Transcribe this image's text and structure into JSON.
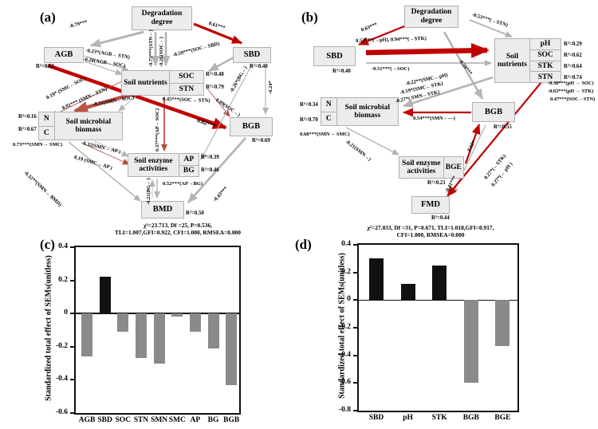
{
  "colors": {
    "arrow_gray": "#b4b4b4",
    "arrow_red": "#c00000",
    "arrow_brick": "#bd5146",
    "box_fill": "#ececec",
    "bar_gray": "#8a8a8a",
    "bar_black": "#111111"
  },
  "panels": {
    "a": {
      "tag": "(a)",
      "boxes": {
        "degradation": "Degradation degree",
        "agb": "AGB",
        "sbd": "SBD",
        "soil_nutrients": "Soil nutrients",
        "soc": "SOC",
        "stn": "STN",
        "smb": "Soil microbial biomass",
        "n": "N",
        "c": "C",
        "bgb": "BGB",
        "sea": "Soil enzyme activities",
        "ap": "AP",
        "bg": "BG",
        "bmd": "BMD"
      },
      "r2": {
        "agb": "R²=0.62",
        "sbd": "R²=0.40",
        "soc": "R²=0.48",
        "stn": "R²=0.79",
        "n": "R²=0.16",
        "c": "R²=0.67",
        "bgb": "R²=0.69",
        "ap": "R²=0.39",
        "bg": "R²=0.46",
        "bmd": "R²=0.50"
      },
      "edges": {
        "deg_agb": "-0.79***",
        "deg_sbd": "0.61***",
        "deg_stn": "-0.73***(STN←)",
        "deg_soc": "-0.26(SOC←)",
        "agb_stn": "-0.23*(AGB→ STN)",
        "agb_soc": "-0.20(AGB→ SOC)",
        "sbd_soc": "-0.59***(SOC←SBD)",
        "smc_soc": "0.19* (SMC←SOC)",
        "smn_stn": "0.91*** (SMN←STN)",
        "smn_soc": "-0.31(SMN←SOC)",
        "soc_stn": "0.45***(SOC→ STN)",
        "soc_bgb": "0.09(SOC→)",
        "bg_sbd": "-0.26*(BG←)",
        "sbd_bgb": "-0.24*",
        "agb_bgb": "0.82***",
        "smn_smc": "0.73***(SMN→ SMC)",
        "smn_ap": "-0.32(SMN→ AP )",
        "smc_ap": "0.19 (SMC→ AP )",
        "ap_soc": "0.37***(AP←SOC)",
        "smn_bmd": "-0.32**(SMN→ BMD)",
        "bg_bmd": "-0.21(BG←)",
        "ap_bg": "0.52***(AP→BG)",
        "bgb_bmd": "-0.43***"
      },
      "stats1": "χ²=23.713, Df =25, P=0.536,",
      "stats2": "TLI=1.007,GFI=0.922, CFI=1.000, RMSEA=0.000"
    },
    "b": {
      "tag": "(b)",
      "boxes": {
        "degradation": "Degradation degree",
        "sbd": "SBD",
        "soil_nutrients": "Soil nutrients",
        "ph": "pH",
        "soc": "SOC",
        "stk": "STK",
        "stn": "STN",
        "smb": "Soil microbial biomass",
        "n": "N",
        "c": "C",
        "bgb": "BGB",
        "sea": "Soil enzyme activities",
        "bge": "BGE",
        "fmd": "FMD"
      },
      "r2": {
        "sbd": "R²=0.40",
        "ph": "R²=0.29",
        "soc": "R²=0.62",
        "stk": "R²=0.64",
        "stn": "R²=0.74",
        "n": "R²=0.34",
        "c": "R²=0.70",
        "bgb": "R²=0.55",
        "bge": "R²=0.21",
        "fmd": "R²=0.44"
      },
      "edges": {
        "deg_sbd": "0.63***",
        "deg_stn": "-0.53***(→STN)",
        "deg_bgb": "-0.59***",
        "sbd_ph_stk": "0.53***(→pH), 0.94***(→STK)",
        "sbd_soc": "-0.51***(→SOC)",
        "smc_ph": "-0.22**(SMC←pH)",
        "smc_stk": "-0.19*(SMC←STK)",
        "smn_stk": "-0.27*( SMN←STK)",
        "ph_soc": "-0.38***(pH → SOC)",
        "ph_stk": "-0.63***(pH → STK)",
        "soc_stn": "0.47***(SOC→STN)",
        "bgb_smn": "0.54***(SMN←—)",
        "smn_smc": "0.68***(SMN→ SMC)",
        "smn_sea": "-0.21(SMN→)",
        "bge_bgb": "0.65*",
        "bgb_fmd": "-0.41***",
        "fmd_stk": "0.27*(←STK)",
        "fmd_ph": "0.27*(← pH )"
      },
      "stats1": "χ²=27.033, Df =31, P=0.671, TLI=1.018,GFI=0.917,",
      "stats2": "CFI=1.000, RMSEA=0.000"
    }
  },
  "chart_data": [
    {
      "id": "c",
      "type": "bar",
      "panel_label": "(c)",
      "categories": [
        "AGB",
        "SBD",
        "SOC",
        "STN",
        "SMN",
        "SMC",
        "AP",
        "BG",
        "BGB"
      ],
      "values": [
        -0.26,
        0.22,
        -0.11,
        -0.27,
        -0.3,
        -0.02,
        -0.11,
        -0.21,
        -0.43
      ],
      "bar_colors": [
        "#8a8a8a",
        "#111111",
        "#8a8a8a",
        "#8a8a8a",
        "#8a8a8a",
        "#8a8a8a",
        "#8a8a8a",
        "#8a8a8a",
        "#8a8a8a"
      ],
      "title": "",
      "xlabel": "",
      "ylabel": "Standardized total effect of SEMs(unitless)",
      "ylim": [
        -0.6,
        0.4
      ],
      "yticks": [
        "0.4",
        "0.2",
        "0",
        "-0.2",
        "-0.4",
        "-0.6"
      ],
      "grid": false,
      "legend_position": "none"
    },
    {
      "id": "d",
      "type": "bar",
      "panel_label": "(d)",
      "categories": [
        "SBD",
        "pH",
        "STK",
        "BGB",
        "BGE"
      ],
      "values": [
        0.3,
        0.12,
        0.25,
        -0.6,
        -0.33
      ],
      "bar_colors": [
        "#111111",
        "#111111",
        "#111111",
        "#8a8a8a",
        "#8a8a8a"
      ],
      "title": "",
      "xlabel": "",
      "ylabel": "Standardized total effect of  SEMs(unitless)",
      "ylim": [
        -0.8,
        0.4
      ],
      "yticks": [
        "0.4",
        "0.2",
        "0",
        "-0.2",
        "-0.4",
        "-0.6",
        "-0.8"
      ],
      "grid": false,
      "legend_position": "none"
    }
  ]
}
